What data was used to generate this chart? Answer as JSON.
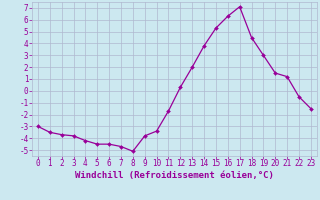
{
  "x": [
    0,
    1,
    2,
    3,
    4,
    5,
    6,
    7,
    8,
    9,
    10,
    11,
    12,
    13,
    14,
    15,
    16,
    17,
    18,
    19,
    20,
    21,
    22,
    23
  ],
  "y": [
    -3.0,
    -3.5,
    -3.7,
    -3.8,
    -4.2,
    -4.5,
    -4.5,
    -4.7,
    -5.1,
    -3.8,
    -3.4,
    -1.7,
    0.3,
    2.0,
    3.8,
    5.3,
    6.3,
    7.1,
    4.5,
    3.0,
    1.5,
    1.2,
    -0.5,
    -1.5
  ],
  "line_color": "#990099",
  "marker": "D",
  "markersize": 2,
  "linewidth": 0.9,
  "xlabel": "Windchill (Refroidissement éolien,°C)",
  "xlabel_fontsize": 6.5,
  "xlim": [
    -0.5,
    23.5
  ],
  "ylim": [
    -5.5,
    7.5
  ],
  "yticks": [
    -5,
    -4,
    -3,
    -2,
    -1,
    0,
    1,
    2,
    3,
    4,
    5,
    6,
    7
  ],
  "xticks": [
    0,
    1,
    2,
    3,
    4,
    5,
    6,
    7,
    8,
    9,
    10,
    11,
    12,
    13,
    14,
    15,
    16,
    17,
    18,
    19,
    20,
    21,
    22,
    23
  ],
  "background_color": "#cce8f0",
  "grid_color": "#b0b8d0",
  "tick_fontsize": 5.5
}
